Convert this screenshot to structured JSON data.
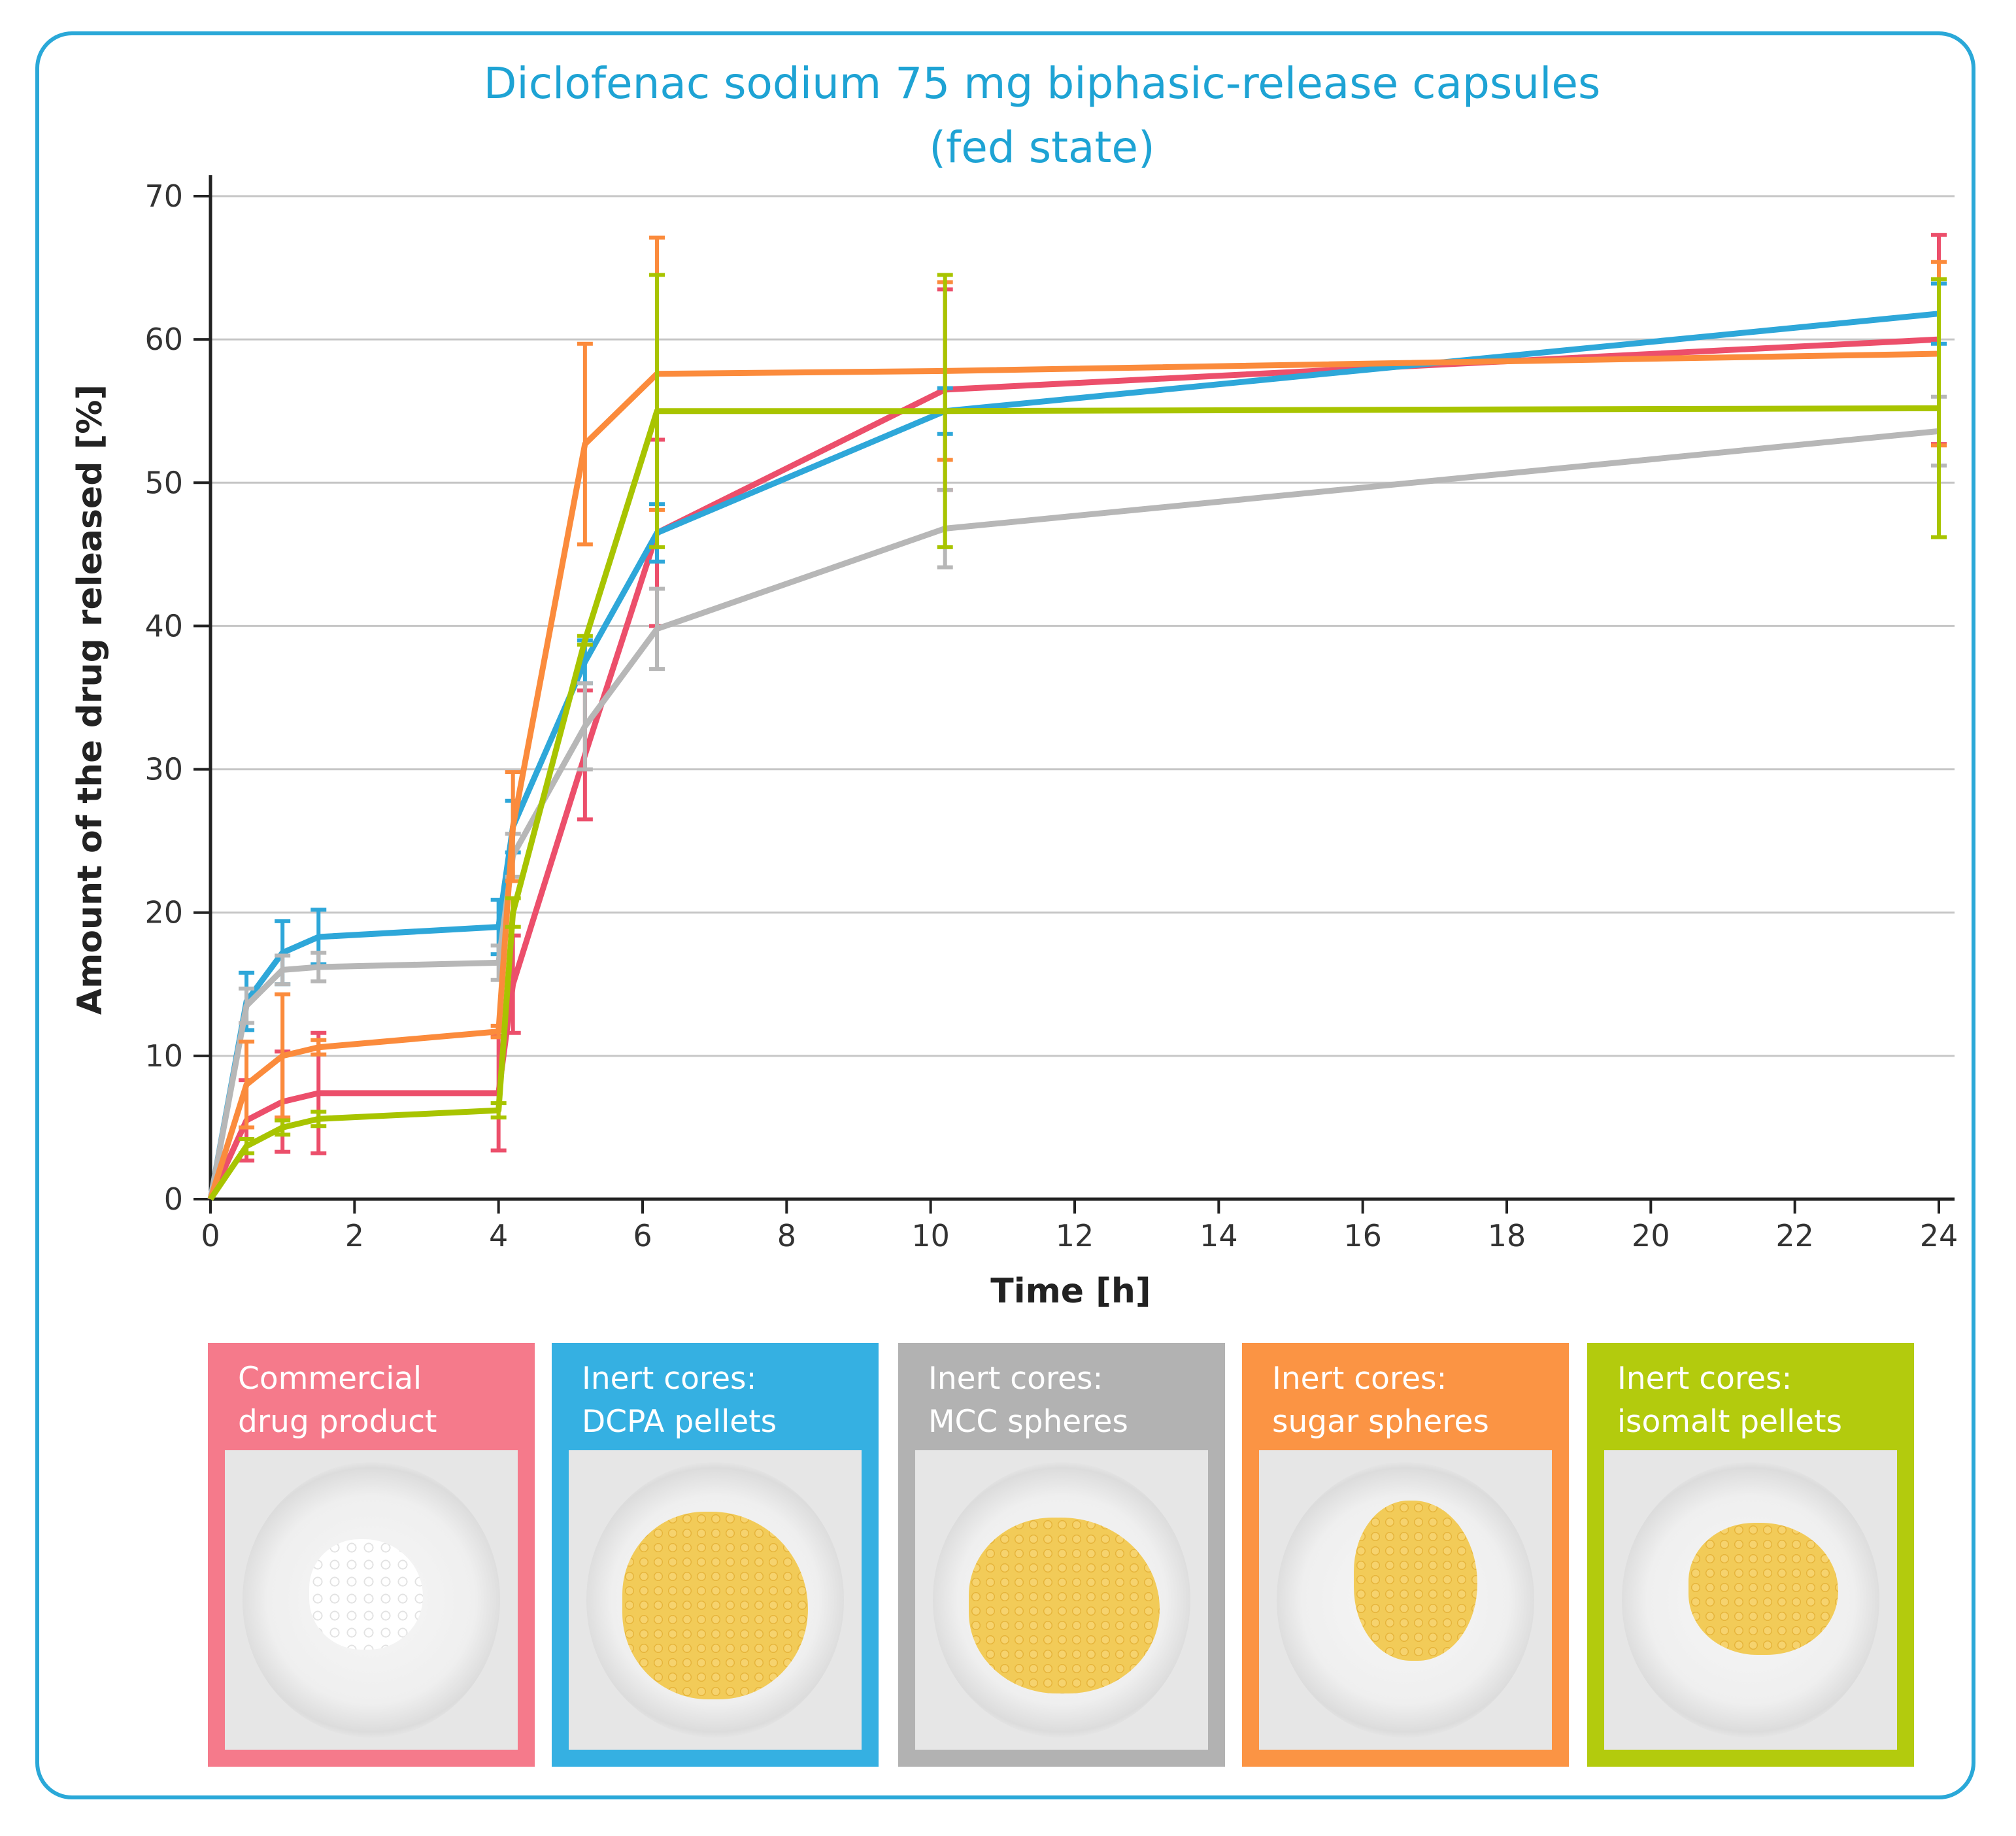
{
  "chart_data": {
    "type": "line",
    "title_line1": "Diclofenac sodium 75 mg biphasic-release capsules",
    "title_line2": "(fed state)",
    "xlabel": "Time [h]",
    "ylabel": "Amount of the drug released [%]",
    "xlim": [
      0,
      24
    ],
    "ylim": [
      0,
      70
    ],
    "xticks": [
      0,
      2,
      4,
      6,
      8,
      10,
      12,
      14,
      16,
      18,
      20,
      22,
      24
    ],
    "yticks": [
      0,
      10,
      20,
      30,
      40,
      50,
      60,
      70
    ],
    "grid": "horizontal",
    "series": [
      {
        "name": "Commercial drug product",
        "color": "#ec4f6b",
        "x": [
          0,
          0.5,
          1,
          1.5,
          4,
          4.2,
          5.2,
          6.2,
          10.2,
          24
        ],
        "y": [
          0,
          5.5,
          6.8,
          7.4,
          7.4,
          15,
          31,
          46.5,
          56.5,
          60
        ],
        "err": [
          0,
          2.8,
          3.5,
          4.2,
          4,
          3.4,
          4.5,
          6.5,
          7,
          7.3
        ]
      },
      {
        "name": "Inert cores: DCPA pellets",
        "color": "#2ea7d9",
        "x": [
          0,
          0.5,
          1,
          1.5,
          4,
          4.2,
          5.2,
          6.2,
          10.2,
          24
        ],
        "y": [
          0,
          13.8,
          17.2,
          18.3,
          19,
          26,
          37.5,
          46.5,
          55,
          61.8
        ],
        "err": [
          0,
          2,
          2.2,
          1.9,
          1.9,
          1.8,
          1.5,
          2,
          1.6,
          2.1
        ]
      },
      {
        "name": "Inert cores: MCC spheres",
        "color": "#b7b7b7",
        "x": [
          0,
          0.5,
          1,
          1.5,
          4,
          4.2,
          5.2,
          6.2,
          10.2,
          24
        ],
        "y": [
          0,
          13.5,
          16,
          16.2,
          16.5,
          24,
          33,
          39.8,
          46.8,
          53.6
        ],
        "err": [
          0,
          1.2,
          1,
          1,
          1.2,
          1.5,
          3,
          2.8,
          2.7,
          2.4
        ]
      },
      {
        "name": "Inert cores: sugar spheres",
        "color": "#fb8b3c",
        "x": [
          0,
          0.5,
          1,
          1.5,
          4,
          4.2,
          5.2,
          6.2,
          10.2,
          24
        ],
        "y": [
          0,
          8,
          10,
          10.6,
          11.7,
          26,
          52.7,
          57.6,
          57.8,
          59
        ],
        "err": [
          0,
          3,
          4.3,
          0.5,
          0.4,
          3.8,
          7,
          9.5,
          6.2,
          6.4
        ]
      },
      {
        "name": "Inert cores: isomalt pellets",
        "color": "#a8c400",
        "x": [
          0,
          0.5,
          1,
          1.5,
          4,
          4.2,
          5.2,
          6.2,
          10.2,
          24
        ],
        "y": [
          0,
          3.7,
          5,
          5.6,
          6.2,
          20,
          39,
          55,
          55,
          55.2
        ],
        "err": [
          0,
          0.5,
          0.5,
          0.5,
          0.5,
          1,
          0.3,
          9.5,
          9.5,
          9
        ]
      }
    ]
  },
  "legend": [
    {
      "line1": "Commercial",
      "line2": "drug product",
      "color": "#f57a8b",
      "pellet": "white"
    },
    {
      "line1": "Inert cores:",
      "line2": "DCPA pellets",
      "color": "#35b0e2",
      "pellet": "yellow"
    },
    {
      "line1": "Inert cores:",
      "line2": "MCC spheres",
      "color": "#b2b2b2",
      "pellet": "yellow"
    },
    {
      "line1": "Inert cores:",
      "line2": "sugar spheres",
      "color": "#fb9444",
      "pellet": "yellow"
    },
    {
      "line1": "Inert cores:",
      "line2": "isomalt pellets",
      "color": "#b3cb0d",
      "pellet": "yellow"
    }
  ]
}
